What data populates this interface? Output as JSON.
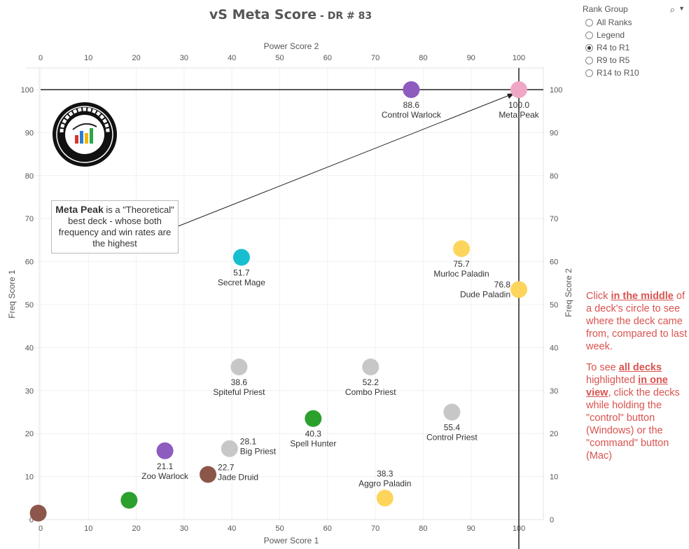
{
  "title": {
    "main": "vS Meta Score",
    "sub": " - DR # 83"
  },
  "legend": {
    "title": "Rank Group",
    "options": [
      "All Ranks",
      "Legend",
      "R4 to R1",
      "R9 to R5",
      "R14 to R10"
    ],
    "selected": "R4 to R1"
  },
  "annotation": {
    "bold": "Meta Peak",
    "text": " is a \"Theoretical\" best deck - whose both frequency and win rates are the highest"
  },
  "side_note": {
    "p1_a": "Click ",
    "p1_b": "in the middle",
    "p1_c": " of a deck's circle to see where the deck came from, compared to last week.",
    "p2_a": "To see ",
    "p2_b": "all decks ",
    "p2_c": "highlighted ",
    "p2_d": "in one view",
    "p2_e": ", click the decks while holding the \"control\" button (Windows) or the \"command\" button (Mac)"
  },
  "logo_text": "DATA REAPER REPORT",
  "colors": {
    "warlock": "#8e5bbf",
    "meta_peak": "#f0a6c6",
    "mage": "#17becf",
    "paladin": "#fdd55c",
    "priest": "#c7c7c7",
    "hunter": "#2ca02c",
    "druid": "#8c564b",
    "annotation_red": "#d9534f"
  },
  "chart_data": {
    "type": "scatter",
    "xlabel_bottom": "Power Score 1",
    "xlabel_top": "Power Score 2",
    "ylabel_left": "Freq Score 1",
    "ylabel_right": "Freq Score 2",
    "xlim": [
      0,
      100
    ],
    "ylim": [
      0,
      100
    ],
    "xticks": [
      0,
      10,
      20,
      30,
      40,
      50,
      60,
      70,
      80,
      90,
      100
    ],
    "yticks": [
      0,
      10,
      20,
      30,
      40,
      50,
      60,
      70,
      80,
      90,
      100
    ],
    "reference_lines": {
      "x": 100,
      "y": 100
    },
    "points": [
      {
        "name": "Control Warlock",
        "score": "88.6",
        "x": 77.5,
        "y": 100,
        "color": "#8e5bbf"
      },
      {
        "name": "Meta Peak",
        "score": "100.0",
        "x": 100,
        "y": 100,
        "color": "#f0a6c6"
      },
      {
        "name": "Secret Mage",
        "score": "51.7",
        "x": 42,
        "y": 61,
        "color": "#17becf"
      },
      {
        "name": "Murloc Paladin",
        "score": "75.7",
        "x": 88,
        "y": 63,
        "color": "#fdd55c"
      },
      {
        "name": "Dude Paladin",
        "score": "76.8",
        "x": 100,
        "y": 53.5,
        "color": "#fdd55c"
      },
      {
        "name": "Spiteful Priest",
        "score": "38.6",
        "x": 41.5,
        "y": 35.5,
        "color": "#c7c7c7"
      },
      {
        "name": "Combo Priest",
        "score": "52.2",
        "x": 69,
        "y": 35.5,
        "color": "#c7c7c7"
      },
      {
        "name": "Spell Hunter",
        "score": "40.3",
        "x": 57,
        "y": 23.5,
        "color": "#2ca02c"
      },
      {
        "name": "Control Priest",
        "score": "55.4",
        "x": 86,
        "y": 25,
        "color": "#c7c7c7"
      },
      {
        "name": "Big Priest",
        "score": "28.1",
        "x": 39.5,
        "y": 16.5,
        "color": "#c7c7c7"
      },
      {
        "name": "Zoo Warlock",
        "score": "21.1",
        "x": 26,
        "y": 16,
        "color": "#8e5bbf"
      },
      {
        "name": "Jade Druid",
        "score": "22.7",
        "x": 35,
        "y": 10.5,
        "color": "#8c564b"
      },
      {
        "name": "Aggro Paladin",
        "score": "38.3",
        "x": 72,
        "y": 5,
        "color": "#fdd55c"
      },
      {
        "name": "",
        "score": "",
        "x": 18.5,
        "y": 4.5,
        "color": "#2ca02c"
      },
      {
        "name": "",
        "score": "",
        "x": -0.5,
        "y": 1.5,
        "color": "#8c564b"
      }
    ]
  }
}
